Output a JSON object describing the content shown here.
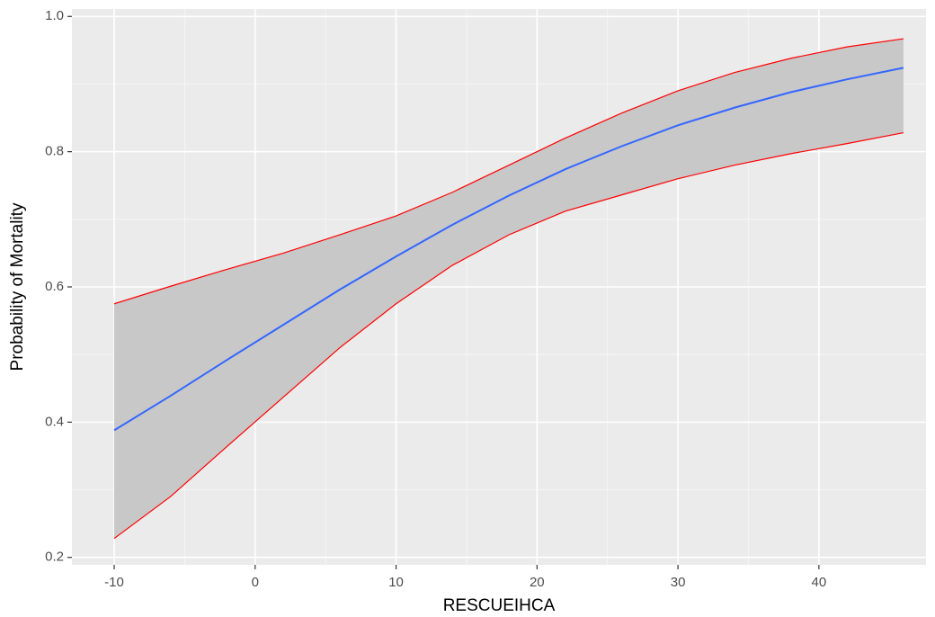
{
  "chart_data": {
    "type": "line",
    "xlabel": "RESCUEIHCA",
    "ylabel": "Probability of Mortality",
    "x": [
      -10,
      -6,
      -2,
      2,
      6,
      10,
      14,
      18,
      22,
      26,
      30,
      34,
      38,
      42,
      46
    ],
    "series": [
      {
        "color": "#3366ff",
        "values": [
          0.388,
          0.439,
          0.492,
          0.544,
          0.596,
          0.645,
          0.692,
          0.735,
          0.774,
          0.808,
          0.839,
          0.865,
          0.888,
          0.907,
          0.924
        ]
      }
    ],
    "band": {
      "fill": "#c8c8c8",
      "line_color": "#ff0000",
      "upper": [
        0.575,
        0.601,
        0.626,
        0.65,
        0.677,
        0.705,
        0.74,
        0.78,
        0.82,
        0.857,
        0.89,
        0.917,
        0.938,
        0.955,
        0.967
      ],
      "lower": [
        0.228,
        0.29,
        0.364,
        0.437,
        0.51,
        0.575,
        0.632,
        0.677,
        0.712,
        0.736,
        0.76,
        0.78,
        0.797,
        0.812,
        0.828
      ]
    },
    "xlim": [
      -13,
      47.6
    ],
    "ylim": [
      0.189,
      1.011
    ],
    "xticks": [
      -10,
      0,
      10,
      20,
      30,
      40
    ],
    "yticks": [
      0.2,
      0.4,
      0.6,
      0.8,
      {
        "value": 1,
        "label": "1.0"
      }
    ],
    "grid": true,
    "panel_color": "#ebebeb"
  }
}
